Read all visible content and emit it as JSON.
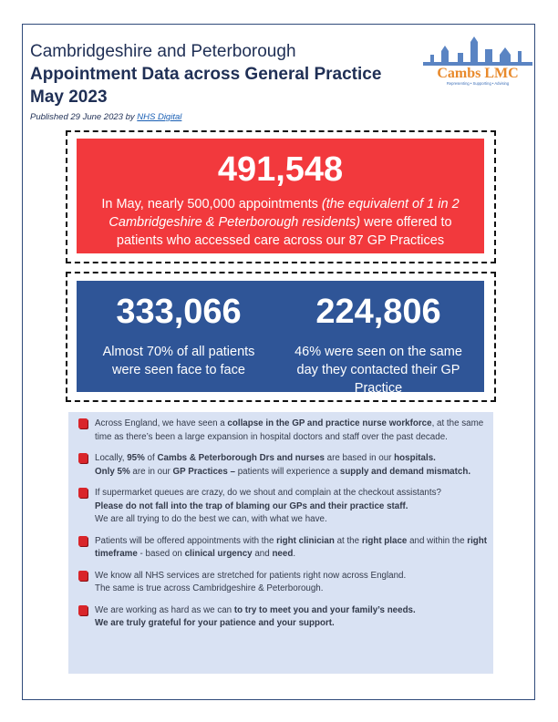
{
  "header": {
    "line1": "Cambridgeshire and Peterborough",
    "line2": "Appointment Data across General Practice",
    "line3": "May 2023",
    "published": "Published 29 June 2023 by",
    "source": "NHS Digital"
  },
  "logo": {
    "name": "Cambs LMC",
    "tagline": "Representing • Supporting • Advising"
  },
  "headline": {
    "number": "491,548",
    "runs": [
      {
        "text": "In May, nearly 500,000 appointments "
      },
      {
        "text": "(the equivalent of 1 in 2 Cambridgeshire & Peterborough residents)",
        "italic": true
      },
      {
        "text": "  were offered to patients who accessed care across our 87 GP Practices"
      }
    ]
  },
  "stats": [
    {
      "number": "333,066",
      "text": "Almost 70% of all patients were seen face to face"
    },
    {
      "number": "224,806",
      "text": "46% were seen on the same day they contacted their GP Practice"
    }
  ],
  "bullets": [
    [
      [
        {
          "text": "Across England, we have seen a "
        },
        {
          "text": "collapse in the GP and practice nurse workforce",
          "bold": true
        },
        {
          "text": ", at the same time as there’s been a large expansion in hospital doctors and staff over the past decade."
        }
      ]
    ],
    [
      [
        {
          "text": "Locally, "
        },
        {
          "text": "95%",
          "bold": true
        },
        {
          "text": " of "
        },
        {
          "text": "Cambs & Peterborough Drs and nurses",
          "bold": true
        },
        {
          "text": " are based in our "
        },
        {
          "text": "hospitals.",
          "bold": true
        }
      ],
      [
        {
          "text": "Only 5%",
          "bold": true
        },
        {
          "text": " are in our "
        },
        {
          "text": "GP Practices –",
          "bold": true
        },
        {
          "text": " patients will experience a "
        },
        {
          "text": "supply and demand mismatch.",
          "bold": true
        }
      ]
    ],
    [
      [
        {
          "text": "If supermarket queues are crazy, do we shout and complain at the checkout assistants?"
        }
      ],
      [
        {
          "text": "Please do not fall into the trap of blaming our GPs and their practice staff.",
          "bold": true
        }
      ],
      [
        {
          "text": "We are all trying to do the best we can, with what we have."
        }
      ]
    ],
    [
      [
        {
          "text": "Patients will be offered appointments with the "
        },
        {
          "text": "right clinician",
          "bold": true
        },
        {
          "text": " at the "
        },
        {
          "text": "right place",
          "bold": true
        },
        {
          "text": " and within the "
        },
        {
          "text": "right timeframe",
          "bold": true
        },
        {
          "text": " - based on "
        },
        {
          "text": "clinical urgency",
          "bold": true
        },
        {
          "text": " and "
        },
        {
          "text": "need",
          "bold": true
        },
        {
          "text": "."
        }
      ]
    ],
    [
      [
        {
          "text": "We know all NHS services are stretched for patients right now across England."
        }
      ],
      [
        {
          "text": "The same is true across Cambridgeshire & Peterborough."
        }
      ]
    ],
    [
      [
        {
          "text": "We are working as hard as we can "
        },
        {
          "text": "to try to meet you and your family’s needs.",
          "bold": true
        }
      ],
      [
        {
          "text": "We are truly grateful for your patience and your support.",
          "bold": true
        }
      ]
    ]
  ]
}
